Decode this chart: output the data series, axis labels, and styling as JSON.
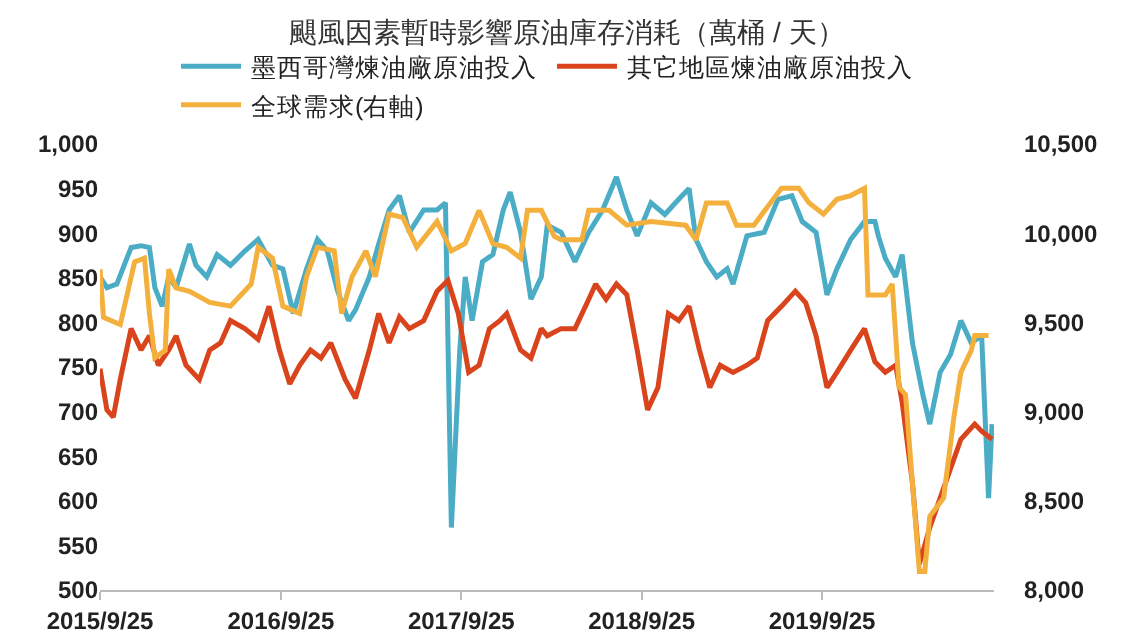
{
  "chart_data": {
    "type": "line",
    "title": "颶風因素暫時影響原油庫存消耗（萬桶 / 天）",
    "legend": "top",
    "grid": false,
    "xlim": [
      "2015-09-25",
      "2020-09-07"
    ],
    "xticks": [
      {
        "value": "2015-09-25",
        "label": "2015/9/25"
      },
      {
        "value": "2016-09-25",
        "label": "2016/9/25"
      },
      {
        "value": "2017-09-25",
        "label": "2017/9/25"
      },
      {
        "value": "2018-09-25",
        "label": "2018/9/25"
      },
      {
        "value": "2019-09-25",
        "label": "2019/9/25"
      }
    ],
    "ylim": [
      500,
      1000
    ],
    "yticks": [
      500,
      550,
      600,
      650,
      700,
      750,
      800,
      850,
      900,
      950,
      {
        "value": 1000,
        "label": "1,000"
      }
    ],
    "y2lim": [
      8000,
      10500
    ],
    "y2ticks": [
      {
        "value": 8000,
        "label": "8,000"
      },
      {
        "value": 8500,
        "label": "8,500"
      },
      {
        "value": 9000,
        "label": "9,000"
      },
      {
        "value": 9500,
        "label": "9,500"
      },
      {
        "value": 10000,
        "label": "10,000"
      },
      {
        "value": 10500,
        "label": "10,500"
      }
    ],
    "series": [
      {
        "name": "墨西哥灣煉油廠原油投入",
        "color": "#4bacc6",
        "x": [
          "2015-09-25",
          "2015-10-09",
          "2015-10-29",
          "2015-11-27",
          "2015-12-17",
          "2016-01-03",
          "2016-01-14",
          "2016-01-29",
          "2016-02-11",
          "2016-02-26",
          "2016-03-24",
          "2016-04-06",
          "2016-04-28",
          "2016-05-19",
          "2016-06-15",
          "2016-07-14",
          "2016-08-10",
          "2016-09-08",
          "2016-09-29",
          "2016-10-20",
          "2016-11-16",
          "2016-12-08",
          "2016-12-28",
          "2017-01-18",
          "2017-02-09",
          "2017-02-23",
          "2017-03-23",
          "2017-04-11",
          "2017-05-02",
          "2017-05-23",
          "2017-06-12",
          "2017-07-11",
          "2017-08-07",
          "2017-08-24",
          "2017-09-05",
          "2017-09-22",
          "2017-10-03",
          "2017-10-17",
          "2017-11-07",
          "2017-11-28",
          "2017-12-19",
          "2018-01-02",
          "2018-01-23",
          "2018-02-13",
          "2018-03-06",
          "2018-03-18",
          "2018-04-15",
          "2018-05-13",
          "2018-06-10",
          "2018-07-08",
          "2018-08-05",
          "2018-08-26",
          "2018-09-16",
          "2018-10-14",
          "2018-11-11",
          "2018-12-09",
          "2018-12-30",
          "2019-01-13",
          "2019-02-03",
          "2019-02-24",
          "2019-03-17",
          "2019-03-29",
          "2019-04-26",
          "2019-05-31",
          "2019-06-28",
          "2019-07-26",
          "2019-08-16",
          "2019-09-13",
          "2019-10-05",
          "2019-10-25",
          "2019-11-22",
          "2019-12-20",
          "2020-01-10",
          "2020-01-17",
          "2020-01-31",
          "2020-02-21",
          "2020-03-05",
          "2020-03-26",
          "2020-04-16",
          "2020-04-30",
          "2020-05-21",
          "2020-06-11",
          "2020-07-02",
          "2020-07-23",
          "2020-08-13",
          "2020-08-27",
          "2020-09-03"
        ],
        "values": [
          851,
          839,
          843,
          884,
          886,
          884,
          839,
          818,
          851,
          839,
          888,
          864,
          851,
          876,
          864,
          880,
          893,
          864,
          860,
          810,
          860,
          893,
          880,
          835,
          802,
          814,
          851,
          888,
          926,
          942,
          901,
          926,
          926,
          934,
          570,
          769,
          851,
          802,
          868,
          876,
          926,
          946,
          901,
          826,
          851,
          909,
          901,
          868,
          901,
          926,
          963,
          926,
          897,
          934,
          921,
          938,
          950,
          893,
          868,
          851,
          860,
          843,
          897,
          901,
          938,
          942,
          913,
          901,
          831,
          860,
          893,
          913,
          913,
          897,
          872,
          851,
          876,
          777,
          719,
          686,
          744,
          764,
          802,
          777,
          785,
          603,
          686
        ]
      },
      {
        "name": "其它地區煉油廠原油投入",
        "color": "#d9441c",
        "x": [
          "2015-09-25",
          "2015-10-09",
          "2015-10-22",
          "2015-11-05",
          "2015-11-27",
          "2015-12-17",
          "2016-01-03",
          "2016-01-21",
          "2016-02-11",
          "2016-02-26",
          "2016-03-17",
          "2016-04-13",
          "2016-05-04",
          "2016-05-26",
          "2016-06-15",
          "2016-07-14",
          "2016-08-10",
          "2016-09-01",
          "2016-09-22",
          "2016-10-13",
          "2016-11-02",
          "2016-11-24",
          "2016-12-15",
          "2017-01-04",
          "2017-02-02",
          "2017-02-23",
          "2017-03-23",
          "2017-04-11",
          "2017-05-02",
          "2017-05-23",
          "2017-06-12",
          "2017-07-11",
          "2017-08-07",
          "2017-08-29",
          "2017-09-19",
          "2017-10-10",
          "2017-10-31",
          "2017-11-21",
          "2017-12-12",
          "2017-12-26",
          "2018-01-23",
          "2018-02-13",
          "2018-03-06",
          "2018-03-18",
          "2018-04-15",
          "2018-05-13",
          "2018-06-10",
          "2018-06-24",
          "2018-07-15",
          "2018-08-05",
          "2018-08-26",
          "2018-09-16",
          "2018-10-07",
          "2018-10-28",
          "2018-11-18",
          "2018-12-09",
          "2018-12-30",
          "2019-01-20",
          "2019-02-10",
          "2019-03-03",
          "2019-03-29",
          "2019-04-26",
          "2019-05-17",
          "2019-06-07",
          "2019-07-05",
          "2019-08-02",
          "2019-08-23",
          "2019-09-13",
          "2019-10-05",
          "2019-10-25",
          "2019-11-22",
          "2019-12-20",
          "2020-01-10",
          "2020-01-31",
          "2020-02-21",
          "2020-03-05",
          "2020-03-26",
          "2020-04-09",
          "2020-04-30",
          "2020-05-21",
          "2020-06-11",
          "2020-07-02",
          "2020-07-30",
          "2020-08-13",
          "2020-09-03"
        ],
        "values": [
          748,
          702,
          694,
          736,
          793,
          769,
          785,
          752,
          769,
          785,
          752,
          736,
          769,
          777,
          802,
          793,
          781,
          818,
          769,
          731,
          752,
          769,
          760,
          777,
          736,
          715,
          769,
          810,
          777,
          806,
          793,
          802,
          835,
          847,
          810,
          744,
          752,
          793,
          802,
          810,
          769,
          760,
          793,
          785,
          793,
          793,
          826,
          843,
          826,
          843,
          831,
          769,
          702,
          727,
          810,
          802,
          818,
          769,
          727,
          752,
          744,
          752,
          760,
          802,
          818,
          835,
          822,
          785,
          727,
          744,
          769,
          793,
          756,
          744,
          752,
          711,
          620,
          529,
          570,
          603,
          636,
          669,
          686,
          678,
          669
        ]
      },
      {
        "name": "全球需求(右軸)",
        "color": "#f4b03c",
        "axis": "y2",
        "x": [
          "2015-09-25",
          "2015-10-02",
          "2015-11-05",
          "2015-12-04",
          "2015-12-24",
          "2016-01-03",
          "2016-01-14",
          "2016-02-04",
          "2016-02-11",
          "2016-02-26",
          "2016-03-24",
          "2016-05-04",
          "2016-06-15",
          "2016-07-27",
          "2016-08-10",
          "2016-09-08",
          "2016-09-29",
          "2016-11-02",
          "2016-11-16",
          "2016-12-08",
          "2017-01-11",
          "2017-01-26",
          "2017-02-16",
          "2017-03-16",
          "2017-04-04",
          "2017-05-02",
          "2017-05-30",
          "2017-06-27",
          "2017-08-07",
          "2017-09-05",
          "2017-10-03",
          "2017-10-31",
          "2017-11-28",
          "2017-12-26",
          "2018-01-23",
          "2018-02-06",
          "2018-03-06",
          "2018-04-01",
          "2018-04-15",
          "2018-05-27",
          "2018-06-10",
          "2018-07-21",
          "2018-08-26",
          "2018-10-14",
          "2018-12-23",
          "2019-01-13",
          "2019-02-03",
          "2019-03-17",
          "2019-04-05",
          "2019-05-10",
          "2019-06-07",
          "2019-07-05",
          "2019-08-09",
          "2019-08-30",
          "2019-09-28",
          "2019-10-25",
          "2019-11-22",
          "2019-12-20",
          "2019-12-27",
          "2020-01-31",
          "2020-02-14",
          "2020-02-28",
          "2020-03-12",
          "2020-04-09",
          "2020-04-20",
          "2020-04-30",
          "2020-05-28",
          "2020-06-18",
          "2020-07-02",
          "2020-07-23",
          "2020-07-30",
          "2020-08-27"
        ],
        "values": [
          9798,
          9529,
          9488,
          9839,
          9860,
          9550,
          9302,
          9343,
          9798,
          9694,
          9674,
          9612,
          9591,
          9715,
          9921,
          9860,
          9591,
          9550,
          9756,
          9921,
          9901,
          9550,
          9756,
          9901,
          9756,
          10107,
          10087,
          9921,
          10066,
          9901,
          9942,
          10128,
          9942,
          9921,
          9860,
          10128,
          10128,
          9983,
          9963,
          9963,
          10128,
          10128,
          10045,
          10066,
          10045,
          9963,
          10169,
          10169,
          10045,
          10045,
          10149,
          10252,
          10252,
          10169,
          10107,
          10190,
          10211,
          10252,
          9653,
          9653,
          9715,
          9136,
          9095,
          8103,
          8103,
          8413,
          8516,
          8971,
          9219,
          9343,
          9426,
          9426
        ]
      }
    ]
  }
}
